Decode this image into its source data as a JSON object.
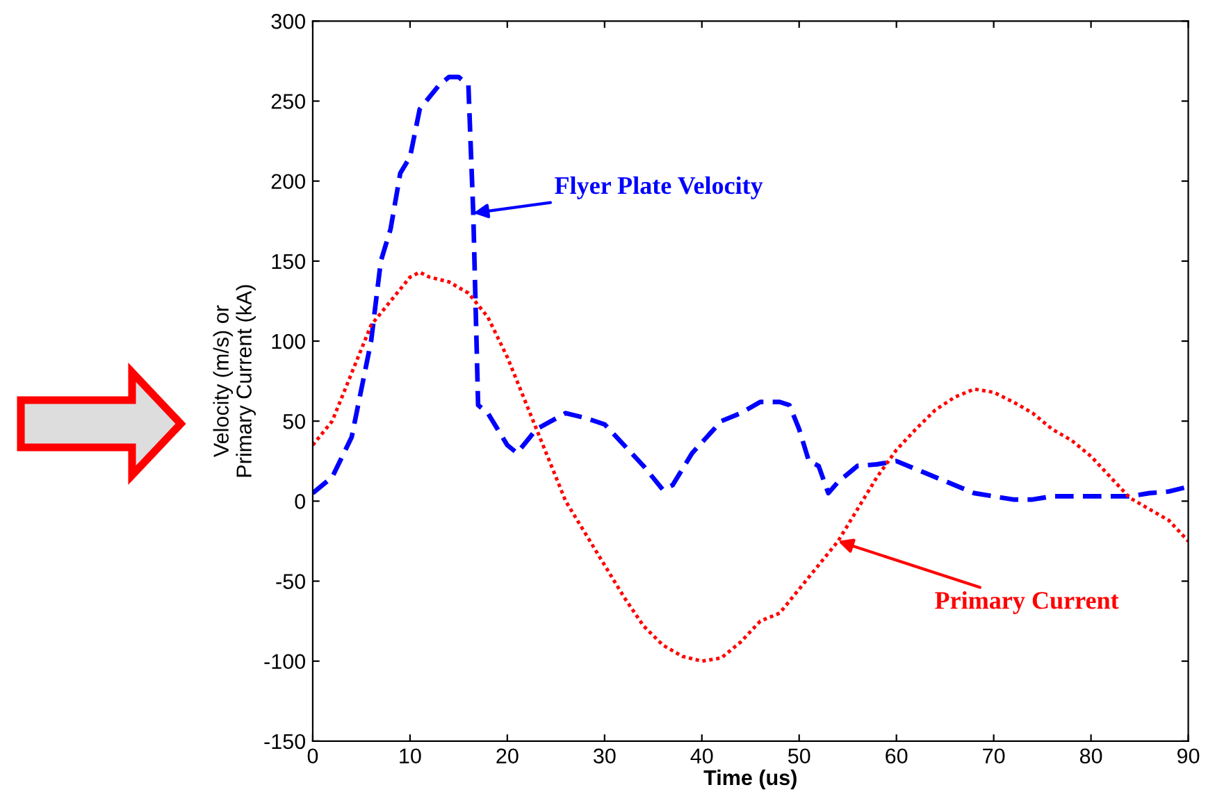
{
  "chart_data": {
    "type": "line",
    "xlabel": "Time (us)",
    "ylabel": "Velocity (m/s) or\nPrimary Current (kA)",
    "xlim": [
      0,
      90
    ],
    "ylim": [
      -150,
      300
    ],
    "xticks": [
      0,
      10,
      20,
      30,
      40,
      50,
      60,
      70,
      80,
      90
    ],
    "yticks": [
      -150,
      -100,
      -50,
      0,
      50,
      100,
      150,
      200,
      250,
      300
    ],
    "grid": false,
    "legend": false,
    "series": [
      {
        "color": "#0000ff",
        "line_style": "dashed",
        "x": [
          0,
          2,
          4,
          6,
          7,
          8,
          9,
          10,
          11,
          13,
          14,
          15,
          16,
          16.5,
          17,
          18,
          20,
          21,
          23,
          26,
          28,
          30,
          32,
          34,
          36,
          37,
          39,
          42,
          44,
          46,
          48,
          49,
          50,
          51,
          52,
          53,
          54,
          56,
          58,
          60,
          62,
          64,
          66,
          68,
          70,
          72,
          74,
          76,
          80,
          84,
          86,
          88,
          90
        ],
        "values": [
          5,
          15,
          40,
          100,
          150,
          170,
          205,
          215,
          245,
          260,
          265,
          265,
          260,
          180,
          60,
          55,
          35,
          30,
          45,
          55,
          52,
          48,
          35,
          22,
          7,
          10,
          30,
          50,
          55,
          62,
          62,
          60,
          45,
          25,
          22,
          5,
          12,
          22,
          23,
          25,
          20,
          15,
          10,
          5,
          3,
          1,
          1,
          3,
          3,
          3,
          5,
          6,
          9
        ]
      },
      {
        "color": "#ff0000",
        "line_style": "dotted",
        "x": [
          0,
          2,
          4,
          6,
          8,
          10,
          11,
          12,
          14,
          16,
          18,
          20,
          22,
          24,
          26,
          28,
          30,
          32,
          34,
          36,
          38,
          40,
          42,
          44,
          46,
          48,
          50,
          52,
          54,
          56,
          58,
          60,
          62,
          64,
          66,
          68,
          70,
          72,
          74,
          76,
          78,
          80,
          82,
          84,
          86,
          88,
          90
        ],
        "values": [
          35,
          50,
          80,
          110,
          125,
          140,
          143,
          140,
          137,
          130,
          115,
          90,
          60,
          30,
          0,
          -20,
          -40,
          -60,
          -78,
          -90,
          -97,
          -100,
          -98,
          -88,
          -75,
          -70,
          -55,
          -40,
          -25,
          -5,
          15,
          32,
          45,
          57,
          65,
          70,
          68,
          62,
          55,
          45,
          38,
          28,
          15,
          2,
          -5,
          -12,
          -25
        ]
      }
    ],
    "annotations": [
      {
        "text": "Flyer Plate Velocity",
        "x": 16.5,
        "y": 180
      },
      {
        "text": "Primary Current",
        "x": 54,
        "y": -25
      }
    ]
  }
}
